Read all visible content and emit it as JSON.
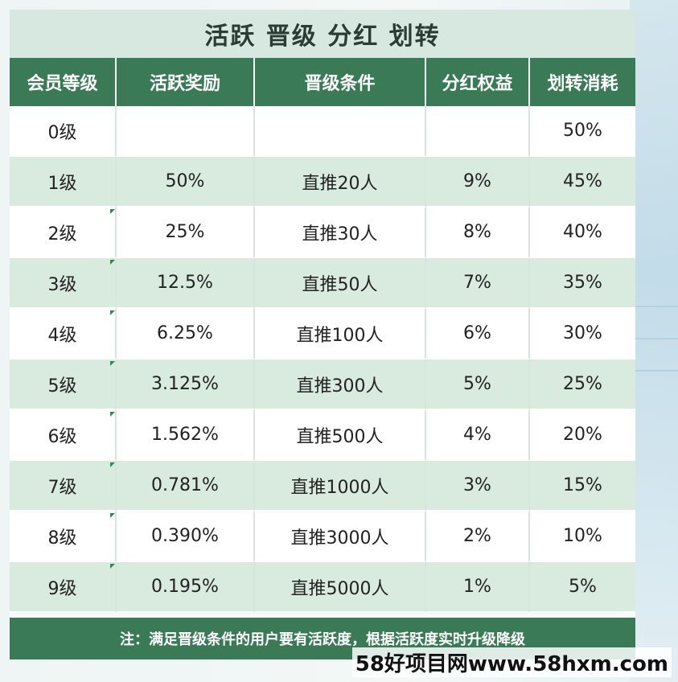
{
  "title": "活跃 晋级 分红 划转",
  "headers": [
    "会员等级",
    "活跃奖励",
    "晋级条件",
    "分红权益",
    "划转消耗"
  ],
  "rows": [
    {
      "level": "0级",
      "reward": "",
      "condition": "",
      "dividend": "",
      "transfer": "50%"
    },
    {
      "level": "1级",
      "reward": "50%",
      "condition": "直推20人",
      "dividend": "9%",
      "transfer": "45%"
    },
    {
      "level": "2级",
      "reward": "25%",
      "condition": "直推30人",
      "dividend": "8%",
      "transfer": "40%"
    },
    {
      "level": "3级",
      "reward": "12.5%",
      "condition": "直推50人",
      "dividend": "7%",
      "transfer": "35%"
    },
    {
      "level": "4级",
      "reward": "6.25%",
      "condition": "直推100人",
      "dividend": "6%",
      "transfer": "30%"
    },
    {
      "level": "5级",
      "reward": "3.125%",
      "condition": "直推300人",
      "dividend": "5%",
      "transfer": "25%"
    },
    {
      "level": "6级",
      "reward": "1.562%",
      "condition": "直推500人",
      "dividend": "4%",
      "transfer": "20%"
    },
    {
      "level": "7级",
      "reward": "0.781%",
      "condition": "直推1000人",
      "dividend": "3%",
      "transfer": "15%"
    },
    {
      "level": "8级",
      "reward": "0.390%",
      "condition": "直推3000人",
      "dividend": "2%",
      "transfer": "10%"
    },
    {
      "level": "9级",
      "reward": "0.195%",
      "condition": "直推5000人",
      "dividend": "1%",
      "transfer": "5%"
    }
  ],
  "note": "注：满足晋级条件的用户要有活跃度，根据活跃度实时升级降级",
  "watermark": "58好项目网www.58hxm.com",
  "colors": {
    "header_green": "#3b7a56",
    "title_bg": "#d6e8df",
    "row_alt": "#d9eadf"
  }
}
